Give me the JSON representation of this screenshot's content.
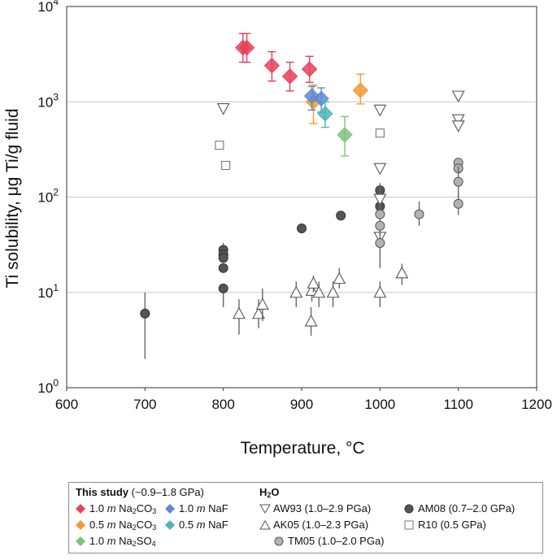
{
  "chart_data": {
    "type": "scatter",
    "xlabel": "Temperature, °C",
    "ylabel": "Ti solubility, μg Ti/g fluid",
    "xlim": [
      600,
      1200
    ],
    "ylim_log10": [
      0,
      4
    ],
    "x_ticks": [
      "600",
      "700",
      "800",
      "900",
      "1000",
      "1100",
      "1200"
    ],
    "y_ticks": [
      {
        "base": "10",
        "exp": "0"
      },
      {
        "base": "10",
        "exp": "1"
      },
      {
        "base": "10",
        "exp": "2"
      },
      {
        "base": "10",
        "exp": "3"
      },
      {
        "base": "10",
        "exp": "4"
      }
    ],
    "grid": "horizontal",
    "series": [
      {
        "name": "1.0 m Na2CO3",
        "group": "this_study",
        "marker": "diamond",
        "color": "#e8415a",
        "points": [
          [
            825,
            3700,
            2600,
            5200
          ],
          [
            830,
            3700,
            2600,
            5200
          ],
          [
            862,
            2400,
            1650,
            3350
          ],
          [
            885,
            1850,
            1300,
            2600
          ],
          [
            910,
            2200,
            1600,
            3000
          ]
        ]
      },
      {
        "name": "0.5 m Na2CO3",
        "group": "this_study",
        "marker": "diamond",
        "color": "#f39a33",
        "points": [
          [
            915,
            1000,
            590,
            1500
          ],
          [
            975,
            1320,
            950,
            1950
          ]
        ]
      },
      {
        "name": "1.0 m NaF",
        "group": "this_study",
        "marker": "diamond",
        "color": "#5a8bd6",
        "points": [
          [
            913,
            1150,
            820,
            1450
          ],
          [
            925,
            1080,
            780,
            1400
          ]
        ]
      },
      {
        "name": "0.5 m NaF",
        "group": "this_study",
        "marker": "diamond",
        "color": "#4fb4b4",
        "points": [
          [
            930,
            750,
            540,
            1000
          ]
        ]
      },
      {
        "name": "1.0 m Na2SO4",
        "group": "this_study",
        "marker": "diamond",
        "color": "#7dc47d",
        "points": [
          [
            955,
            450,
            270,
            700
          ]
        ]
      },
      {
        "name": "AW93 (1.0–2.9 PGa)",
        "group": "h2o",
        "marker": "triangle-down",
        "color": "#555555",
        "points": [
          [
            800,
            850,
            null,
            null
          ],
          [
            1000,
            820,
            null,
            null
          ],
          [
            1000,
            200,
            null,
            null
          ],
          [
            1000,
            95,
            60,
            140
          ],
          [
            1000,
            38,
            28,
            50
          ],
          [
            1100,
            1150,
            null,
            null
          ],
          [
            1100,
            650,
            null,
            null
          ],
          [
            1100,
            560,
            null,
            null
          ]
        ]
      },
      {
        "name": "AK05 (1.0–2.3 PGa)",
        "group": "h2o",
        "marker": "triangle-up",
        "color": "#555555",
        "points": [
          [
            820,
            6,
            3.6,
            8.5
          ],
          [
            845,
            6,
            4.2,
            8.5
          ],
          [
            850,
            7.5,
            5,
            11
          ],
          [
            893,
            10,
            7,
            13
          ],
          [
            912,
            5,
            3.5,
            7
          ],
          [
            913,
            10.5,
            8,
            13
          ],
          [
            915,
            12.5,
            10,
            15
          ],
          [
            922,
            10,
            7,
            13
          ],
          [
            940,
            10,
            7,
            13
          ],
          [
            948,
            14,
            11,
            18
          ],
          [
            1000,
            10,
            7,
            13
          ],
          [
            1028,
            16,
            12,
            20
          ]
        ]
      },
      {
        "name": "TM05 (1.0–2.0 PGa)",
        "group": "h2o",
        "marker": "circle",
        "color": "#b2b2b2",
        "points": [
          [
            1000,
            66,
            null,
            null
          ],
          [
            1000,
            50,
            null,
            null
          ],
          [
            1000,
            33,
            28,
            45
          ],
          [
            1050,
            66,
            50,
            90
          ],
          [
            1100,
            230,
            null,
            null
          ],
          [
            1100,
            200,
            null,
            null
          ],
          [
            1100,
            145,
            100,
            210
          ],
          [
            1100,
            85,
            65,
            110
          ]
        ]
      },
      {
        "name": "AM08 (0.7–2.0 GPa)",
        "group": "h2o",
        "marker": "circle",
        "color": "#555555",
        "points": [
          [
            700,
            6,
            2,
            10
          ],
          [
            800,
            28,
            null,
            33
          ],
          [
            800,
            25,
            null,
            null
          ],
          [
            800,
            23,
            null,
            null
          ],
          [
            800,
            18,
            null,
            null
          ],
          [
            800,
            11,
            7,
            null
          ],
          [
            900,
            47,
            null,
            null
          ],
          [
            950,
            64,
            null,
            null
          ],
          [
            1000,
            118,
            null,
            null
          ],
          [
            1000,
            80,
            18,
            100
          ]
        ]
      },
      {
        "name": "R10 (0.5 GPa)",
        "group": "h2o",
        "marker": "square",
        "color": "#777777",
        "points": [
          [
            795,
            350,
            null,
            null
          ],
          [
            803,
            215,
            null,
            null
          ],
          [
            1000,
            470,
            null,
            null
          ]
        ]
      }
    ]
  },
  "legend": {
    "this_study_head": "This study",
    "this_study_note": "(~0.9–1.8 GPa)",
    "h2o_head": "H",
    "h2o_sub": "2",
    "h2o_tail": "O",
    "items": [
      {
        "pre": "1.0 ",
        "m": "m",
        "base": " Na",
        "sub": "2",
        "post": "CO",
        "sub2": "3"
      },
      {
        "pre": "0.5 ",
        "m": "m",
        "base": " Na",
        "sub": "2",
        "post": "CO",
        "sub2": "3"
      },
      {
        "pre": "1.0 ",
        "m": "m",
        "base": " Na",
        "sub": "2",
        "post": "SO",
        "sub2": "4"
      },
      {
        "pre": "1.0 ",
        "m": "m",
        "base": " NaF",
        "sub": "",
        "post": "",
        "sub2": ""
      },
      {
        "pre": "0.5 ",
        "m": "m",
        "base": " NaF",
        "sub": "",
        "post": "",
        "sub2": ""
      }
    ],
    "h2o_items": [
      "AW93 (1.0–2.9 PGa)",
      "AK05 (1.0–2.3 PGa)",
      "TM05 (1.0–2.0 PGa)",
      "AM08 (0.7–2.0 GPa)",
      "R10 (0.5 GPa)"
    ]
  }
}
